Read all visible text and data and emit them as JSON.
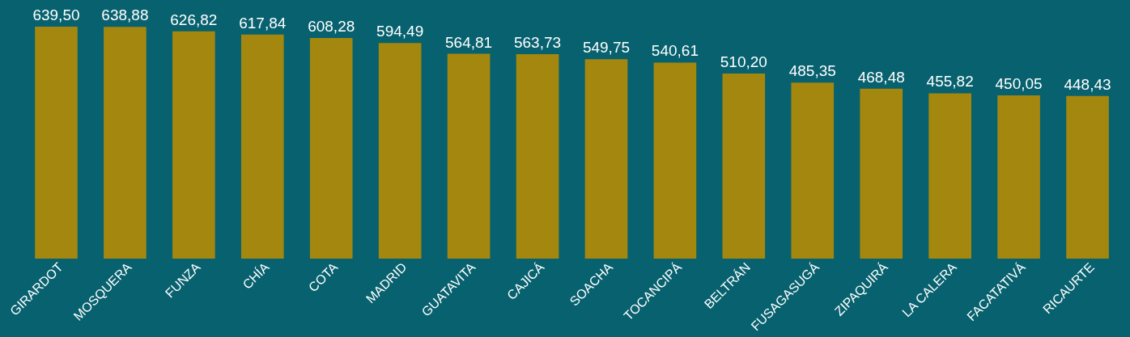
{
  "chart_data": {
    "type": "bar",
    "categories": [
      "GIRARDOT",
      "MOSQUERA",
      "FUNZA",
      "CHÍA",
      "COTA",
      "MADRID",
      "GUATAVITA",
      "CAJICÁ",
      "SOACHA",
      "TOCANCIPÁ",
      "BELTRÁN",
      "FUSAGASUGÁ",
      "ZIPAQUIRÁ",
      "LA CALERA",
      "FACATATIVÁ",
      "RICAURTE"
    ],
    "values": [
      639.5,
      638.88,
      626.82,
      617.84,
      608.28,
      594.49,
      564.81,
      563.73,
      549.75,
      540.61,
      510.2,
      485.35,
      468.48,
      455.82,
      450.05,
      448.43
    ],
    "value_labels": [
      "639,50",
      "638,88",
      "626,82",
      "617,84",
      "608,28",
      "594,49",
      "564,81",
      "563,73",
      "549,75",
      "540,61",
      "510,20",
      "485,35",
      "468,48",
      "455,82",
      "450,05",
      "448,43"
    ],
    "color": "#a3870f",
    "grid": false
  }
}
